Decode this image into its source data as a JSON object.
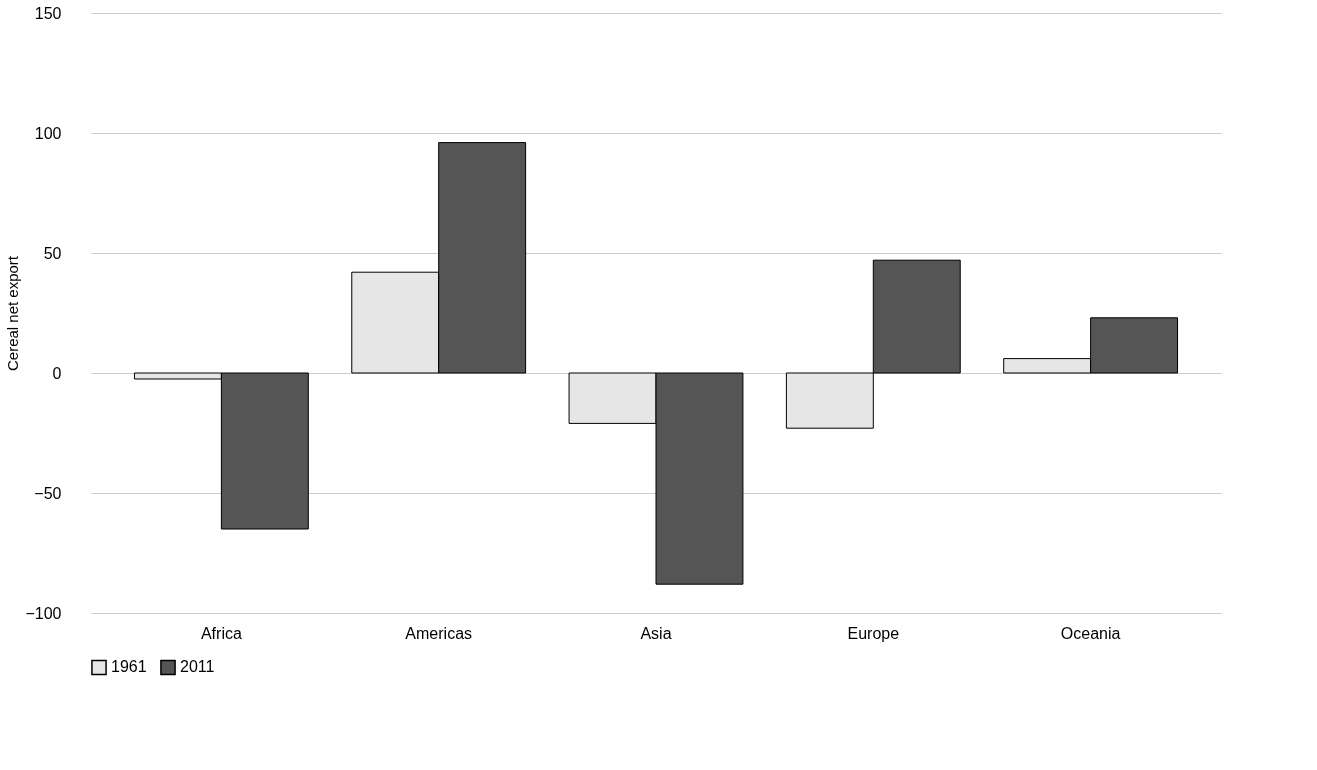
{
  "chart_data": {
    "type": "bar",
    "ylabel": "Cereal net export",
    "categories": [
      "Africa",
      "Americas",
      "Asia",
      "Europe",
      "Oceania"
    ],
    "series": [
      {
        "name": "1961",
        "color": "#e6e6e6",
        "values": [
          -2.5,
          42,
          -21,
          -23,
          6
        ]
      },
      {
        "name": "2011",
        "color": "#555555",
        "values": [
          -65,
          96,
          -88,
          47,
          23
        ]
      }
    ],
    "ylim": [
      -100,
      150
    ],
    "yticks": [
      -100,
      -50,
      0,
      50,
      100,
      150
    ],
    "grid": "y",
    "legend": "bottom"
  }
}
